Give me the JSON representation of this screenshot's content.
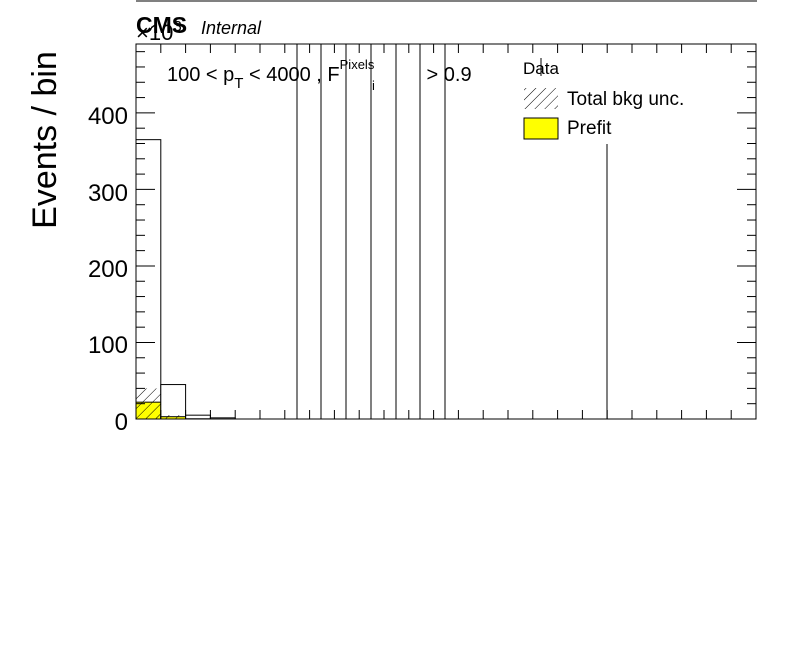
{
  "chart_data": {
    "type": "bar",
    "title": "",
    "cms_label": "CMS",
    "cms_sublabel": "Internal",
    "exponent_label": "×10",
    "exponent_power": "3",
    "ylabel": "Events / bin",
    "xlabel": "",
    "cut_text": {
      "prefix": "100 < p",
      "sub1": "T",
      "middle": " < 4000 , F",
      "sub2": "i",
      "sup2": "Pixels",
      "suffix": " > 0.9"
    },
    "ylim": [
      0,
      490
    ],
    "y_ticks": [
      "0",
      "100",
      "200",
      "300",
      "400"
    ],
    "n_bins": 25,
    "bins": [
      {
        "bkg": 365,
        "prefit": 22,
        "unc": 40
      },
      {
        "bkg": 45,
        "prefit": 3,
        "unc": 5
      },
      {
        "bkg": 5,
        "prefit": 0.3,
        "unc": 0
      },
      {
        "bkg": 1.5,
        "prefit": 0,
        "unc": 0
      },
      {
        "bkg": 0,
        "prefit": 0,
        "unc": 0
      }
    ],
    "series": [
      {
        "name": "Data",
        "style": "marker"
      },
      {
        "name": "Total bkg unc.",
        "style": "hatched"
      },
      {
        "name": "Prefit",
        "style": "filled",
        "color": "#ffff00"
      }
    ],
    "legend_position": "top-right",
    "grid": false
  }
}
